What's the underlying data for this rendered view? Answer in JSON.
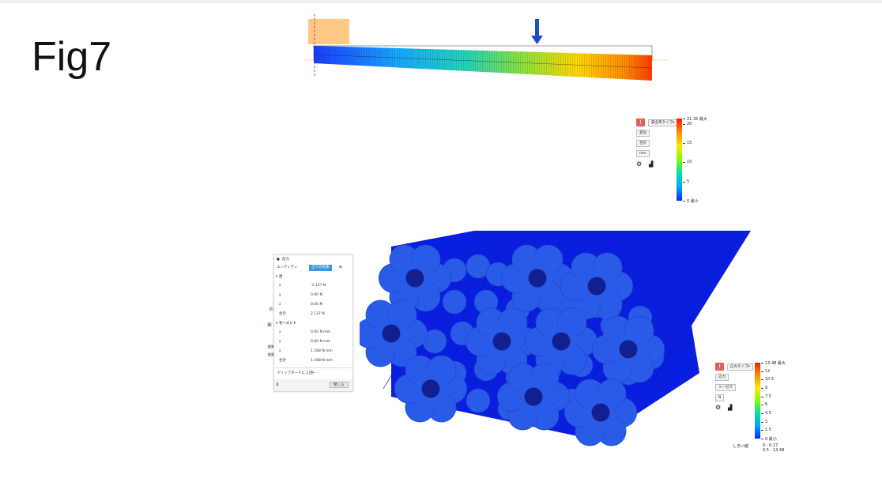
{
  "figure": {
    "title": "Fig7"
  },
  "legend_top": {
    "dropdowns": [
      "安全率タイプ▾",
      "変位",
      "合計",
      "mm"
    ],
    "ticks": [
      {
        "label": "21.35 最大",
        "value": 21.35
      },
      {
        "label": "20",
        "value": 20
      },
      {
        "label": "15",
        "value": 15
      },
      {
        "label": "10",
        "value": 10
      },
      {
        "label": "5",
        "value": 5
      },
      {
        "label": "0 最小",
        "value": 0
      }
    ],
    "range": [
      0,
      21.35
    ]
  },
  "legend_bottom": {
    "dropdowns": [
      "応力タイプ▾",
      "応力",
      "ミーゼス",
      "N"
    ],
    "ticks": [
      {
        "label": "13.48 最大",
        "value": 13.48
      },
      {
        "label": "12",
        "value": 12
      },
      {
        "label": "10.5",
        "value": 10.5
      },
      {
        "label": "9",
        "value": 9
      },
      {
        "label": "7.5",
        "value": 7.5
      },
      {
        "label": "6",
        "value": 6
      },
      {
        "label": "4.5",
        "value": 4.5
      },
      {
        "label": "3",
        "value": 3
      },
      {
        "label": "1.5",
        "value": 1.5
      },
      {
        "label": "0 最小",
        "value": 0
      }
    ],
    "range": [
      0,
      13.48
    ],
    "threshold_label": "しきい値",
    "threshold_values": [
      "0 - 0.17",
      "0.5 - 13.48"
    ]
  },
  "panel": {
    "header": "反力",
    "entity_label": "エンティティ",
    "entity_value": "全ての拘束",
    "force_section": "力",
    "force_rows": [
      {
        "k": "x",
        "v": "-2.137 N"
      },
      {
        "k": "y",
        "v": "0.00 N"
      },
      {
        "k": "z",
        "v": "0.00 N"
      },
      {
        "k": "合計",
        "v": "2.137 N"
      }
    ],
    "moment_section": "モーメント",
    "moment_rows": [
      {
        "k": "x",
        "v": "0.00 N mm"
      },
      {
        "k": "y",
        "v": "0.00 N mm"
      },
      {
        "k": "z",
        "v": "1.168 N mm"
      },
      {
        "k": "合計",
        "v": "1.168 N mm"
      }
    ],
    "copy_label": "クリップボードにコピー",
    "close_label": "閉じる",
    "side_tags": [
      "応",
      "精",
      "結果",
      "結果"
    ]
  },
  "colors": {
    "beam_start": "#1a3cff",
    "beam_end": "#ff3c00",
    "bundle_face": "#2a5ae8",
    "bundle_side": "#0a1ee0",
    "bundle_hole": "#12208f",
    "accent_button": "#3a9ad9"
  },
  "icons": [
    "warning-icon",
    "gear-icon",
    "chart-icon",
    "info-icon",
    "clipboard-icon",
    "down-arrow-load-icon"
  ]
}
